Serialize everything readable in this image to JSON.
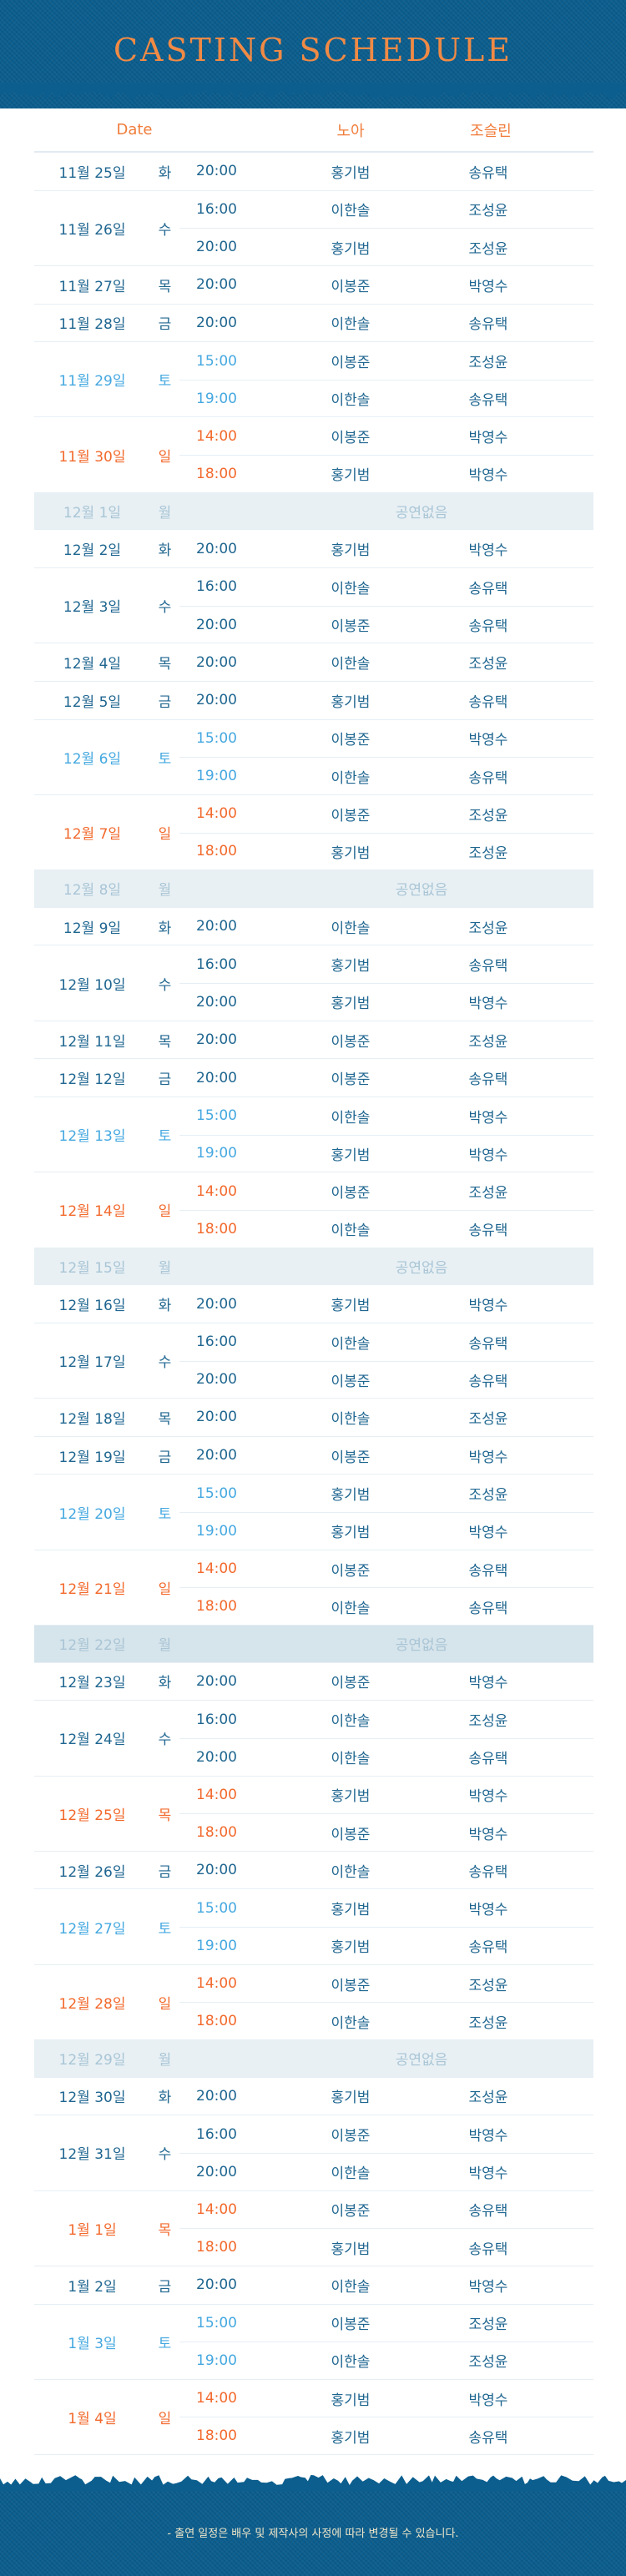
{
  "title": "CASTING SCHEDULE",
  "header": {
    "date": "Date",
    "noa": "노아",
    "josurin": "조슬린"
  },
  "no_show_label": "공연없음",
  "footer_note": "- 출연 일정은 배우 및 제작사의 사정에 따라 변경될 수 있습니다.",
  "colors": {
    "banner": "#0b5e8e",
    "title": "#f08a45",
    "weekday": "#1f6690",
    "saturday": "#45a8e0",
    "sunday_holiday": "#f2692c",
    "off_bg": "#e8f0f4",
    "off_text": "#a9c5d5"
  },
  "schedule": [
    {
      "date": "11월 25일",
      "day": "화",
      "type": "weekday",
      "shows": [
        [
          "20:00",
          "홍기범",
          "송유택"
        ]
      ]
    },
    {
      "date": "11월 26일",
      "day": "수",
      "type": "weekday",
      "shows": [
        [
          "16:00",
          "이한솔",
          "조성윤"
        ],
        [
          "20:00",
          "홍기범",
          "조성윤"
        ]
      ]
    },
    {
      "date": "11월 27일",
      "day": "목",
      "type": "weekday",
      "shows": [
        [
          "20:00",
          "이봉준",
          "박영수"
        ]
      ]
    },
    {
      "date": "11월 28일",
      "day": "금",
      "type": "weekday",
      "shows": [
        [
          "20:00",
          "이한솔",
          "송유택"
        ]
      ]
    },
    {
      "date": "11월 29일",
      "day": "토",
      "type": "sat",
      "shows": [
        [
          "15:00",
          "이봉준",
          "조성윤"
        ],
        [
          "19:00",
          "이한솔",
          "송유택"
        ]
      ]
    },
    {
      "date": "11월 30일",
      "day": "일",
      "type": "sun",
      "shows": [
        [
          "14:00",
          "이봉준",
          "박영수"
        ],
        [
          "18:00",
          "홍기범",
          "박영수"
        ]
      ]
    },
    {
      "date": "12월 1일",
      "day": "월",
      "type": "off",
      "shows": []
    },
    {
      "date": "12월 2일",
      "day": "화",
      "type": "weekday",
      "shows": [
        [
          "20:00",
          "홍기범",
          "박영수"
        ]
      ]
    },
    {
      "date": "12월 3일",
      "day": "수",
      "type": "weekday",
      "shows": [
        [
          "16:00",
          "이한솔",
          "송유택"
        ],
        [
          "20:00",
          "이봉준",
          "송유택"
        ]
      ]
    },
    {
      "date": "12월 4일",
      "day": "목",
      "type": "weekday",
      "shows": [
        [
          "20:00",
          "이한솔",
          "조성윤"
        ]
      ]
    },
    {
      "date": "12월 5일",
      "day": "금",
      "type": "weekday",
      "shows": [
        [
          "20:00",
          "홍기범",
          "송유택"
        ]
      ]
    },
    {
      "date": "12월 6일",
      "day": "토",
      "type": "sat",
      "shows": [
        [
          "15:00",
          "이봉준",
          "박영수"
        ],
        [
          "19:00",
          "이한솔",
          "송유택"
        ]
      ]
    },
    {
      "date": "12월 7일",
      "day": "일",
      "type": "sun",
      "shows": [
        [
          "14:00",
          "이봉준",
          "조성윤"
        ],
        [
          "18:00",
          "홍기범",
          "조성윤"
        ]
      ]
    },
    {
      "date": "12월 8일",
      "day": "월",
      "type": "off",
      "shows": []
    },
    {
      "date": "12월 9일",
      "day": "화",
      "type": "weekday",
      "shows": [
        [
          "20:00",
          "이한솔",
          "조성윤"
        ]
      ]
    },
    {
      "date": "12월 10일",
      "day": "수",
      "type": "weekday",
      "shows": [
        [
          "16:00",
          "홍기범",
          "송유택"
        ],
        [
          "20:00",
          "홍기범",
          "박영수"
        ]
      ]
    },
    {
      "date": "12월 11일",
      "day": "목",
      "type": "weekday",
      "shows": [
        [
          "20:00",
          "이봉준",
          "조성윤"
        ]
      ]
    },
    {
      "date": "12월 12일",
      "day": "금",
      "type": "weekday",
      "shows": [
        [
          "20:00",
          "이봉준",
          "송유택"
        ]
      ]
    },
    {
      "date": "12월 13일",
      "day": "토",
      "type": "sat",
      "shows": [
        [
          "15:00",
          "이한솔",
          "박영수"
        ],
        [
          "19:00",
          "홍기범",
          "박영수"
        ]
      ]
    },
    {
      "date": "12월 14일",
      "day": "일",
      "type": "sun",
      "shows": [
        [
          "14:00",
          "이봉준",
          "조성윤"
        ],
        [
          "18:00",
          "이한솔",
          "송유택"
        ]
      ]
    },
    {
      "date": "12월 15일",
      "day": "월",
      "type": "off",
      "shows": []
    },
    {
      "date": "12월 16일",
      "day": "화",
      "type": "weekday",
      "shows": [
        [
          "20:00",
          "홍기범",
          "박영수"
        ]
      ]
    },
    {
      "date": "12월 17일",
      "day": "수",
      "type": "weekday",
      "shows": [
        [
          "16:00",
          "이한솔",
          "송유택"
        ],
        [
          "20:00",
          "이봉준",
          "송유택"
        ]
      ]
    },
    {
      "date": "12월 18일",
      "day": "목",
      "type": "weekday",
      "shows": [
        [
          "20:00",
          "이한솔",
          "조성윤"
        ]
      ]
    },
    {
      "date": "12월 19일",
      "day": "금",
      "type": "weekday",
      "shows": [
        [
          "20:00",
          "이봉준",
          "박영수"
        ]
      ]
    },
    {
      "date": "12월 20일",
      "day": "토",
      "type": "sat",
      "shows": [
        [
          "15:00",
          "홍기범",
          "조성윤"
        ],
        [
          "19:00",
          "홍기범",
          "박영수"
        ]
      ]
    },
    {
      "date": "12월 21일",
      "day": "일",
      "type": "sun",
      "shows": [
        [
          "14:00",
          "이봉준",
          "송유택"
        ],
        [
          "18:00",
          "이한솔",
          "송유택"
        ]
      ]
    },
    {
      "date": "12월 22일",
      "day": "월",
      "type": "off",
      "shows": []
    },
    {
      "date": "12월 23일",
      "day": "화",
      "type": "weekday",
      "shows": [
        [
          "20:00",
          "이봉준",
          "박영수"
        ]
      ]
    },
    {
      "date": "12월 24일",
      "day": "수",
      "type": "weekday",
      "shows": [
        [
          "16:00",
          "이한솔",
          "조성윤"
        ],
        [
          "20:00",
          "이한솔",
          "송유택"
        ]
      ]
    },
    {
      "date": "12월 25일",
      "day": "목",
      "type": "holiday",
      "shows": [
        [
          "14:00",
          "홍기범",
          "박영수"
        ],
        [
          "18:00",
          "이봉준",
          "박영수"
        ]
      ]
    },
    {
      "date": "12월 26일",
      "day": "금",
      "type": "weekday",
      "shows": [
        [
          "20:00",
          "이한솔",
          "송유택"
        ]
      ]
    },
    {
      "date": "12월 27일",
      "day": "토",
      "type": "sat",
      "shows": [
        [
          "15:00",
          "홍기범",
          "박영수"
        ],
        [
          "19:00",
          "홍기범",
          "송유택"
        ]
      ]
    },
    {
      "date": "12월 28일",
      "day": "일",
      "type": "sun",
      "shows": [
        [
          "14:00",
          "이봉준",
          "조성윤"
        ],
        [
          "18:00",
          "이한솔",
          "조성윤"
        ]
      ]
    },
    {
      "date": "12월 29일",
      "day": "월",
      "type": "off",
      "shows": []
    },
    {
      "date": "12월 30일",
      "day": "화",
      "type": "weekday",
      "shows": [
        [
          "20:00",
          "홍기범",
          "조성윤"
        ]
      ]
    },
    {
      "date": "12월 31일",
      "day": "수",
      "type": "weekday",
      "shows": [
        [
          "16:00",
          "이봉준",
          "박영수"
        ],
        [
          "20:00",
          "이한솔",
          "박영수"
        ]
      ]
    },
    {
      "date": "1월 1일",
      "day": "목",
      "type": "holiday",
      "shows": [
        [
          "14:00",
          "이봉준",
          "송유택"
        ],
        [
          "18:00",
          "홍기범",
          "송유택"
        ]
      ]
    },
    {
      "date": "1월 2일",
      "day": "금",
      "type": "weekday",
      "shows": [
        [
          "20:00",
          "이한솔",
          "박영수"
        ]
      ]
    },
    {
      "date": "1월 3일",
      "day": "토",
      "type": "sat",
      "shows": [
        [
          "15:00",
          "이봉준",
          "조성윤"
        ],
        [
          "19:00",
          "이한솔",
          "조성윤"
        ]
      ]
    },
    {
      "date": "1월 4일",
      "day": "일",
      "type": "sun",
      "shows": [
        [
          "14:00",
          "홍기범",
          "박영수"
        ],
        [
          "18:00",
          "홍기범",
          "송유택"
        ]
      ]
    }
  ]
}
